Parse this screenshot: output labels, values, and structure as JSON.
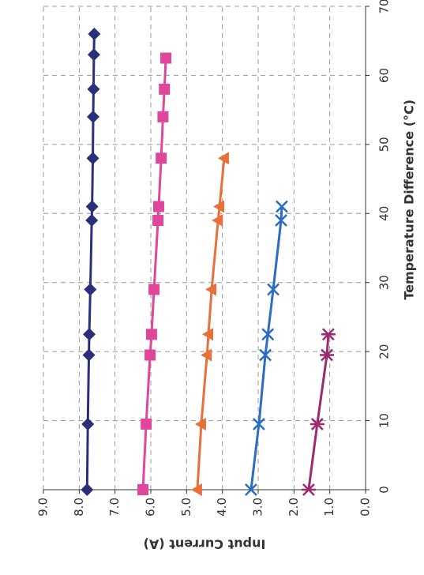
{
  "chart_data": {
    "type": "line",
    "x_label": "Temperature Difference (°C)",
    "y_label": "Input Current (A)",
    "xlim": [
      0,
      70
    ],
    "xticks": [
      0,
      10,
      20,
      30,
      40,
      50,
      60,
      70
    ],
    "ylim": [
      0,
      9
    ],
    "yticks": [
      {
        "value": 0,
        "label": "0.0"
      },
      {
        "value": 1,
        "label": "1.0"
      },
      {
        "value": 2,
        "label": "2.0"
      },
      {
        "value": 3,
        "label": "3.0"
      },
      {
        "value": 4,
        "label": "4.0"
      },
      {
        "value": 5,
        "label": "5.0"
      },
      {
        "value": 6,
        "label": "6.0"
      },
      {
        "value": 7,
        "label": "7.0"
      },
      {
        "value": 8,
        "label": "8.0"
      },
      {
        "value": 9,
        "label": "9.0"
      }
    ],
    "grid": true,
    "series": [
      {
        "color": "#2b2f7a",
        "marker": "diamond",
        "x": [
          0,
          9.5,
          19.5,
          22.5,
          29,
          39,
          41,
          48,
          54,
          58,
          63,
          66
        ],
        "values": [
          7.78,
          7.76,
          7.73,
          7.72,
          7.69,
          7.65,
          7.64,
          7.62,
          7.61,
          7.6,
          7.59,
          7.58
        ]
      },
      {
        "color": "#e0479b",
        "marker": "square",
        "x": [
          0,
          9.5,
          19.5,
          22.5,
          29,
          39,
          41,
          48,
          54,
          58,
          62.5
        ],
        "values": [
          6.22,
          6.13,
          6.02,
          5.98,
          5.91,
          5.8,
          5.78,
          5.71,
          5.66,
          5.62,
          5.58
        ]
      },
      {
        "color": "#e8703a",
        "marker": "triangle",
        "x": [
          0,
          9.5,
          19.5,
          22.5,
          29,
          39,
          41,
          48
        ],
        "values": [
          4.7,
          4.59,
          4.43,
          4.39,
          4.3,
          4.12,
          4.08,
          3.95
        ]
      },
      {
        "color": "#2b6cc4",
        "marker": "cross",
        "x": [
          0,
          9.5,
          19.5,
          22.5,
          29,
          39,
          41
        ],
        "values": [
          3.2,
          2.98,
          2.8,
          2.73,
          2.58,
          2.36,
          2.34
        ]
      },
      {
        "color": "#9c2a6f",
        "marker": "asterisk",
        "x": [
          0,
          9.5,
          19.5,
          22.5
        ],
        "values": [
          1.59,
          1.35,
          1.08,
          1.04
        ]
      }
    ]
  }
}
